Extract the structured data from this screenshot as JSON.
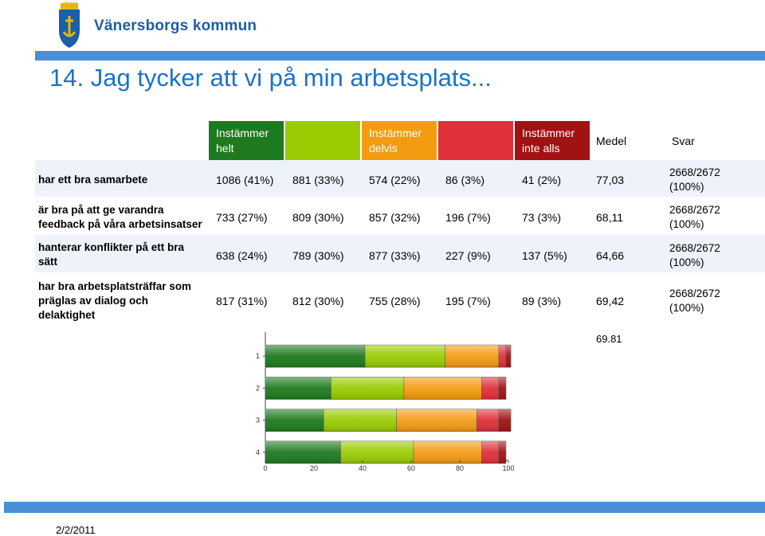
{
  "brand": {
    "name": "Vänersborgs kommun"
  },
  "title": "14. Jag tycker att vi på min arbetsplats...",
  "header": {
    "col1": "Instämmer helt",
    "col3": "Instämmer delvis",
    "col5": "Instämmer inte alls",
    "medel": "Medel",
    "svar": "Svar"
  },
  "rows": [
    {
      "label": "har ett bra samarbete",
      "v1": "1086 (41%)",
      "v2": "881 (33%)",
      "v3": "574 (22%)",
      "v4": "86 (3%)",
      "v5": "41 (2%)",
      "medel": "77,03",
      "svar": "2668/2672 (100%)"
    },
    {
      "label": "är bra på att ge varandra feedback på våra arbetsinsatser",
      "v1": "733 (27%)",
      "v2": "809 (30%)",
      "v3": "857 (32%)",
      "v4": "196 (7%)",
      "v5": "73 (3%)",
      "medel": "68,11",
      "svar": "2668/2672 (100%)"
    },
    {
      "label": "hanterar konflikter på ett bra sätt",
      "v1": "638 (24%)",
      "v2": "789 (30%)",
      "v3": "877 (33%)",
      "v4": "227 (9%)",
      "v5": "137 (5%)",
      "medel": "64,66",
      "svar": "2668/2672 (100%)"
    },
    {
      "label": "har bra arbetsplatsträffar som präglas av dialog och delaktighet",
      "v1": "817 (31%)",
      "v2": "812 (30%)",
      "v3": "755 (28%)",
      "v4": "195 (7%)",
      "v5": "89 (3%)",
      "medel": "69,42",
      "svar": "2668/2672 (100%)"
    }
  ],
  "total_medel": "69.81",
  "date": "2/2/2011",
  "colors": {
    "c1": "#1e7a1e",
    "c2": "#99cc00",
    "c3": "#f39c12",
    "c4": "#e0303a",
    "c5": "#a11212",
    "accent": "#1a73c9"
  },
  "chart_data": {
    "type": "bar",
    "orientation": "horizontal",
    "stacked": true,
    "categories": [
      "1",
      "2",
      "3",
      "4"
    ],
    "series": [
      {
        "values": [
          41,
          27,
          24,
          31
        ]
      },
      {
        "values": [
          33,
          30,
          30,
          30
        ]
      },
      {
        "values": [
          22,
          32,
          33,
          28
        ]
      },
      {
        "values": [
          3,
          7,
          9,
          7
        ]
      },
      {
        "values": [
          2,
          3,
          5,
          3
        ]
      }
    ],
    "xlim": [
      0,
      100
    ],
    "xticks": [
      "0",
      "20",
      "40",
      "60",
      "80",
      "100"
    ]
  }
}
